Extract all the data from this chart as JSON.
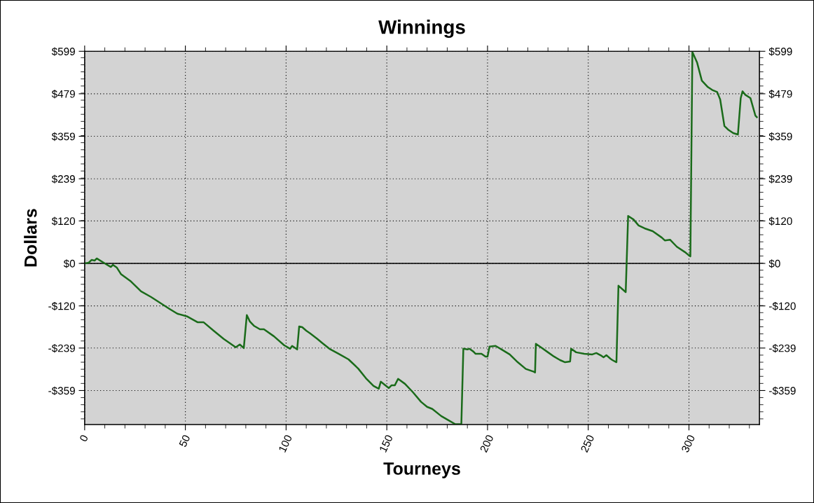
{
  "chart_data": {
    "type": "line",
    "title": "Winnings",
    "xlabel": "Tourneys",
    "ylabel": "Dollars",
    "xlim": [
      0,
      335
    ],
    "xticks": [
      0,
      50,
      100,
      150,
      200,
      250,
      300
    ],
    "ylim": [
      -455,
      599
    ],
    "yticks": [
      {
        "value": 599,
        "label": "$599"
      },
      {
        "value": 479,
        "label": "$479"
      },
      {
        "value": 359,
        "label": "$359"
      },
      {
        "value": 239,
        "label": "$239"
      },
      {
        "value": 120,
        "label": "$120"
      },
      {
        "value": 0,
        "label": "$0"
      },
      {
        "value": -120,
        "label": "-$120"
      },
      {
        "value": -239,
        "label": "-$239"
      },
      {
        "value": -359,
        "label": "-$359"
      }
    ],
    "y2lim": [
      -455,
      599
    ],
    "y2ticks": [
      {
        "value": 599,
        "label": "$599"
      },
      {
        "value": 479,
        "label": "$479"
      },
      {
        "value": 359,
        "label": "$359"
      },
      {
        "value": 239,
        "label": "$239"
      },
      {
        "value": 120,
        "label": "$120"
      },
      {
        "value": 0,
        "label": "$0"
      },
      {
        "value": -120,
        "label": "-$120"
      },
      {
        "value": -239,
        "label": "-$239"
      },
      {
        "value": -359,
        "label": "-$359"
      }
    ],
    "grid": true,
    "legend": false,
    "marker": "none",
    "line_style": "solid",
    "ref_lines": [
      {
        "axis": "y",
        "value": 0,
        "color": "#000000",
        "line_style": "solid"
      }
    ],
    "series": [
      {
        "color": "#1a6b1a",
        "x": [
          0,
          2,
          3.5,
          5,
          6,
          10,
          13,
          14,
          16,
          18,
          23,
          28,
          33,
          42,
          46,
          51,
          56,
          59,
          64,
          69,
          75,
          77,
          79,
          80.5,
          82,
          84,
          87,
          89,
          94,
          99,
          102,
          103,
          105.5,
          106.5,
          108,
          110,
          112,
          115.5,
          118,
          121.5,
          126,
          131,
          135.8,
          139.6,
          143.4,
          146,
          147,
          151,
          152.4,
          154,
          155.6,
          159,
          163,
          167,
          170,
          172.6,
          177,
          180.6,
          184,
          187,
          188,
          190,
          191,
          193,
          194,
          197,
          199,
          200,
          201,
          204,
          207,
          211,
          215,
          219,
          223,
          223.6,
          224,
          227,
          230,
          233,
          236,
          238.5,
          241,
          241.5,
          244,
          248,
          252,
          254,
          256.6,
          257.6,
          259,
          261,
          262,
          264,
          265,
          268.6,
          269.8,
          272.5,
          275,
          278,
          282,
          286.5,
          288,
          290.6,
          294,
          298,
          299.7,
          300.7,
          301.7,
          304,
          306.4,
          309.4,
          311.5,
          314,
          315.5,
          317.6,
          319.4,
          322,
          324.3,
          325.7,
          326.6,
          328,
          330.5,
          333,
          333.7
        ],
        "values": [
          0,
          2,
          10,
          8,
          14,
          0,
          -10,
          -4,
          -12,
          -30,
          -51,
          -79,
          -95,
          -128,
          -142,
          -150,
          -166,
          -166,
          -190,
          -213,
          -237,
          -229,
          -239,
          -146,
          -164,
          -176,
          -186,
          -186,
          -206,
          -231,
          -241,
          -233,
          -243,
          -178,
          -180,
          -190,
          -198,
          -213,
          -225,
          -241,
          -255,
          -271,
          -297,
          -324,
          -346,
          -354,
          -334,
          -352,
          -344,
          -344,
          -326,
          -340,
          -364,
          -391,
          -405,
          -411,
          -431,
          -443,
          -454,
          -454,
          -241,
          -243,
          -241,
          -249,
          -255,
          -255,
          -263,
          -263,
          -235,
          -233,
          -243,
          -257,
          -279,
          -298,
          -306,
          -308,
          -227,
          -239,
          -251,
          -263,
          -273,
          -279,
          -277,
          -241,
          -251,
          -255,
          -257,
          -253,
          -261,
          -265,
          -259,
          -269,
          -273,
          -279,
          -63,
          -81,
          134,
          124,
          107,
          99,
          91,
          73,
          65,
          67,
          47,
          32,
          24,
          20,
          597,
          568,
          516,
          498,
          490,
          484,
          463,
          388,
          378,
          368,
          364,
          467,
          486,
          476,
          467,
          417,
          413
        ]
      }
    ]
  }
}
